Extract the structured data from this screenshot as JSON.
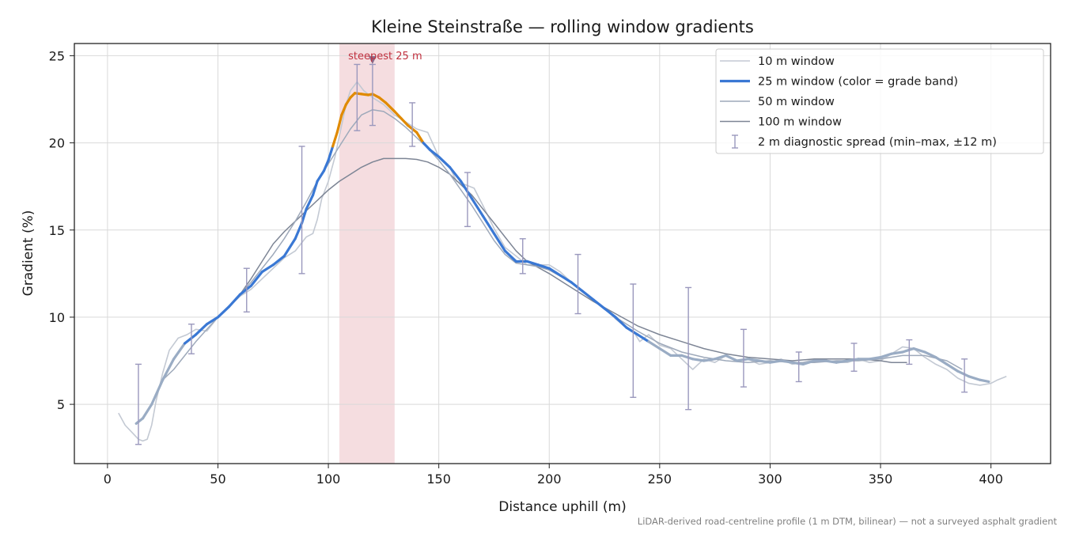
{
  "chart_data": {
    "type": "line",
    "title": "Kleine Steinstraße — rolling window gradients",
    "xlabel": "Distance uphill (m)",
    "ylabel": "Gradient (%)",
    "xlim": [
      -15,
      427
    ],
    "ylim": [
      1.6,
      25.7
    ],
    "xticks": [
      0,
      50,
      100,
      150,
      200,
      250,
      300,
      350,
      400
    ],
    "yticks": [
      5,
      10,
      15,
      20,
      25
    ],
    "grid": true,
    "legend_position": "top-right",
    "legend": [
      {
        "label": "10 m window",
        "color": "#c3c9d3"
      },
      {
        "label": "25 m window (color = grade band)",
        "color": "#3a78d4"
      },
      {
        "label": "50 m window",
        "color": "#9ea9ba"
      },
      {
        "label": "100 m window",
        "color": "#7d8595"
      },
      {
        "label": "2 m diagnostic spread (min–max, ±12 m)",
        "color": "#9a98bd"
      }
    ],
    "highlight_band": {
      "x_start": 105,
      "x_end": 130,
      "color": "#f2d2d5"
    },
    "annotation": {
      "text": "steepest 25 m",
      "x": 120,
      "y": 24.7,
      "color": "#c0303e"
    },
    "grade_band_colors": {
      "steep": "#e08a00",
      "moderate": "#3a78d4",
      "gentle": "#9aacc4"
    },
    "series": [
      {
        "name": "10 m window",
        "color": "#c3c9d3",
        "x": [
          5,
          8,
          11,
          14,
          16,
          18,
          20,
          22,
          25,
          28,
          32,
          36,
          40,
          45,
          50,
          55,
          60,
          65,
          70,
          75,
          80,
          85,
          90,
          93,
          95,
          97,
          100,
          103,
          106,
          108,
          110,
          113,
          116,
          120,
          125,
          130,
          135,
          140,
          145,
          150,
          155,
          158,
          162,
          166,
          170,
          175,
          180,
          185,
          190,
          195,
          200,
          205,
          210,
          215,
          220,
          225,
          230,
          235,
          238,
          241,
          245,
          250,
          255,
          260,
          265,
          270,
          275,
          280,
          285,
          290,
          295,
          300,
          305,
          310,
          315,
          320,
          325,
          330,
          335,
          340,
          345,
          350,
          355,
          360,
          365,
          370,
          375,
          380,
          385,
          390,
          395,
          400,
          403,
          407
        ],
        "y": [
          4.5,
          3.8,
          3.4,
          3.0,
          2.9,
          3.0,
          3.8,
          5.2,
          6.8,
          8.1,
          8.8,
          9.0,
          9.3,
          9.2,
          10.0,
          10.6,
          11.2,
          11.6,
          12.2,
          12.8,
          13.4,
          13.8,
          14.6,
          14.8,
          15.6,
          16.8,
          17.8,
          19.2,
          21.0,
          22.2,
          23.0,
          23.5,
          23.0,
          22.6,
          22.2,
          21.6,
          21.2,
          20.8,
          20.6,
          19.2,
          18.6,
          17.8,
          17.6,
          17.4,
          16.4,
          15.1,
          14.0,
          13.5,
          13.0,
          13.0,
          13.0,
          12.6,
          12.0,
          11.5,
          11.0,
          10.5,
          9.9,
          9.4,
          9.2,
          8.6,
          9.0,
          8.4,
          8.2,
          7.6,
          7.0,
          7.6,
          7.4,
          7.8,
          7.5,
          7.6,
          7.3,
          7.4,
          7.6,
          7.3,
          7.4,
          7.6,
          7.5,
          7.4,
          7.4,
          7.6,
          7.4,
          7.5,
          7.9,
          8.3,
          8.2,
          7.7,
          7.3,
          7.0,
          6.5,
          6.2,
          6.1,
          6.2,
          6.4,
          6.6
        ]
      },
      {
        "name": "25 m window",
        "color": "#3a78d4",
        "x": [
          13,
          16,
          20,
          25,
          30,
          35,
          40,
          45,
          50,
          55,
          60,
          65,
          70,
          75,
          80,
          85,
          88,
          90,
          93,
          95,
          98,
          100,
          102,
          104,
          106,
          108,
          110,
          112,
          115,
          118,
          120,
          123,
          126,
          130,
          133,
          136,
          140,
          143,
          146,
          150,
          155,
          160,
          165,
          170,
          175,
          180,
          185,
          190,
          195,
          200,
          205,
          210,
          215,
          220,
          225,
          230,
          235,
          240,
          245,
          250,
          255,
          260,
          265,
          270,
          275,
          280,
          285,
          290,
          295,
          300,
          305,
          310,
          315,
          320,
          325,
          330,
          335,
          340,
          345,
          350,
          355,
          360,
          365,
          370,
          375,
          380,
          385,
          390,
          395,
          399
        ],
        "y": [
          3.9,
          4.2,
          5.0,
          6.4,
          7.6,
          8.5,
          9.0,
          9.6,
          10.0,
          10.6,
          11.3,
          11.8,
          12.6,
          13.0,
          13.5,
          14.5,
          15.4,
          16.2,
          17.0,
          17.8,
          18.4,
          19.0,
          19.8,
          20.6,
          21.6,
          22.2,
          22.6,
          22.85,
          22.8,
          22.75,
          22.8,
          22.6,
          22.3,
          21.8,
          21.4,
          21.0,
          20.6,
          20.0,
          19.6,
          19.2,
          18.6,
          17.8,
          16.8,
          15.8,
          14.8,
          13.8,
          13.2,
          13.2,
          13.0,
          12.8,
          12.4,
          12.0,
          11.5,
          11.0,
          10.5,
          10.0,
          9.4,
          9.0,
          8.6,
          8.2,
          7.8,
          7.8,
          7.6,
          7.5,
          7.6,
          7.8,
          7.5,
          7.6,
          7.5,
          7.4,
          7.5,
          7.4,
          7.3,
          7.5,
          7.5,
          7.4,
          7.5,
          7.6,
          7.6,
          7.7,
          7.9,
          8.0,
          8.2,
          8.0,
          7.7,
          7.3,
          6.9,
          6.6,
          6.4,
          6.3
        ]
      },
      {
        "name": "50 m window",
        "color": "#9ea9ba",
        "x": [
          25,
          30,
          35,
          40,
          45,
          50,
          55,
          60,
          65,
          70,
          75,
          80,
          85,
          90,
          95,
          100,
          105,
          110,
          115,
          120,
          125,
          130,
          135,
          140,
          145,
          150,
          155,
          160,
          165,
          170,
          175,
          180,
          185,
          190,
          195,
          200,
          210,
          220,
          230,
          240,
          250,
          260,
          270,
          280,
          290,
          300,
          310,
          320,
          330,
          340,
          350,
          360,
          370,
          380,
          387
        ],
        "y": [
          6.4,
          7.0,
          7.8,
          8.6,
          9.3,
          10.0,
          10.6,
          11.3,
          12.0,
          12.8,
          13.6,
          14.5,
          15.5,
          16.6,
          17.8,
          18.8,
          19.8,
          20.8,
          21.6,
          21.9,
          21.8,
          21.4,
          20.9,
          20.3,
          19.7,
          19.0,
          18.2,
          17.3,
          16.4,
          15.4,
          14.4,
          13.6,
          13.1,
          13.0,
          12.9,
          12.7,
          12.0,
          11.0,
          10.0,
          9.2,
          8.5,
          8.0,
          7.7,
          7.5,
          7.4,
          7.5,
          7.4,
          7.4,
          7.5,
          7.5,
          7.6,
          7.8,
          7.8,
          7.5,
          7.0
        ]
      },
      {
        "name": "100 m window",
        "color": "#7d8595",
        "x": [
          50,
          55,
          60,
          65,
          70,
          75,
          80,
          85,
          90,
          95,
          100,
          105,
          110,
          115,
          120,
          125,
          130,
          135,
          140,
          145,
          150,
          155,
          160,
          165,
          170,
          175,
          180,
          185,
          190,
          200,
          210,
          220,
          230,
          240,
          250,
          260,
          270,
          280,
          290,
          300,
          310,
          320,
          330,
          340,
          350,
          355,
          362
        ],
        "y": [
          10.0,
          10.6,
          11.3,
          12.2,
          13.2,
          14.2,
          14.9,
          15.5,
          16.1,
          16.7,
          17.3,
          17.8,
          18.2,
          18.6,
          18.9,
          19.1,
          19.1,
          19.1,
          19.05,
          18.9,
          18.6,
          18.2,
          17.6,
          17.0,
          16.2,
          15.4,
          14.6,
          13.8,
          13.2,
          12.5,
          11.7,
          10.9,
          10.2,
          9.5,
          9.0,
          8.6,
          8.2,
          7.9,
          7.7,
          7.6,
          7.5,
          7.6,
          7.6,
          7.6,
          7.5,
          7.4,
          7.4
        ]
      }
    ],
    "error_bars": [
      {
        "x": 14,
        "min": 2.7,
        "max": 7.3
      },
      {
        "x": 38,
        "min": 7.9,
        "max": 9.6
      },
      {
        "x": 63,
        "min": 10.3,
        "max": 12.8
      },
      {
        "x": 88,
        "min": 12.5,
        "max": 19.8
      },
      {
        "x": 113,
        "min": 20.7,
        "max": 24.5
      },
      {
        "x": 120,
        "min": 21.0,
        "max": 24.5
      },
      {
        "x": 138,
        "min": 19.8,
        "max": 22.3
      },
      {
        "x": 163,
        "min": 15.2,
        "max": 18.3
      },
      {
        "x": 188,
        "min": 12.5,
        "max": 14.5
      },
      {
        "x": 213,
        "min": 10.2,
        "max": 13.6
      },
      {
        "x": 238,
        "min": 5.4,
        "max": 11.9
      },
      {
        "x": 263,
        "min": 4.7,
        "max": 11.7
      },
      {
        "x": 288,
        "min": 6.0,
        "max": 9.3
      },
      {
        "x": 313,
        "min": 6.3,
        "max": 8.0
      },
      {
        "x": 338,
        "min": 6.9,
        "max": 8.5
      },
      {
        "x": 363,
        "min": 7.3,
        "max": 8.7
      },
      {
        "x": 388,
        "min": 5.7,
        "max": 7.6
      }
    ]
  },
  "footnote": "LiDAR-derived road-centreline profile (1 m DTM, bilinear) — not a surveyed asphalt gradient"
}
